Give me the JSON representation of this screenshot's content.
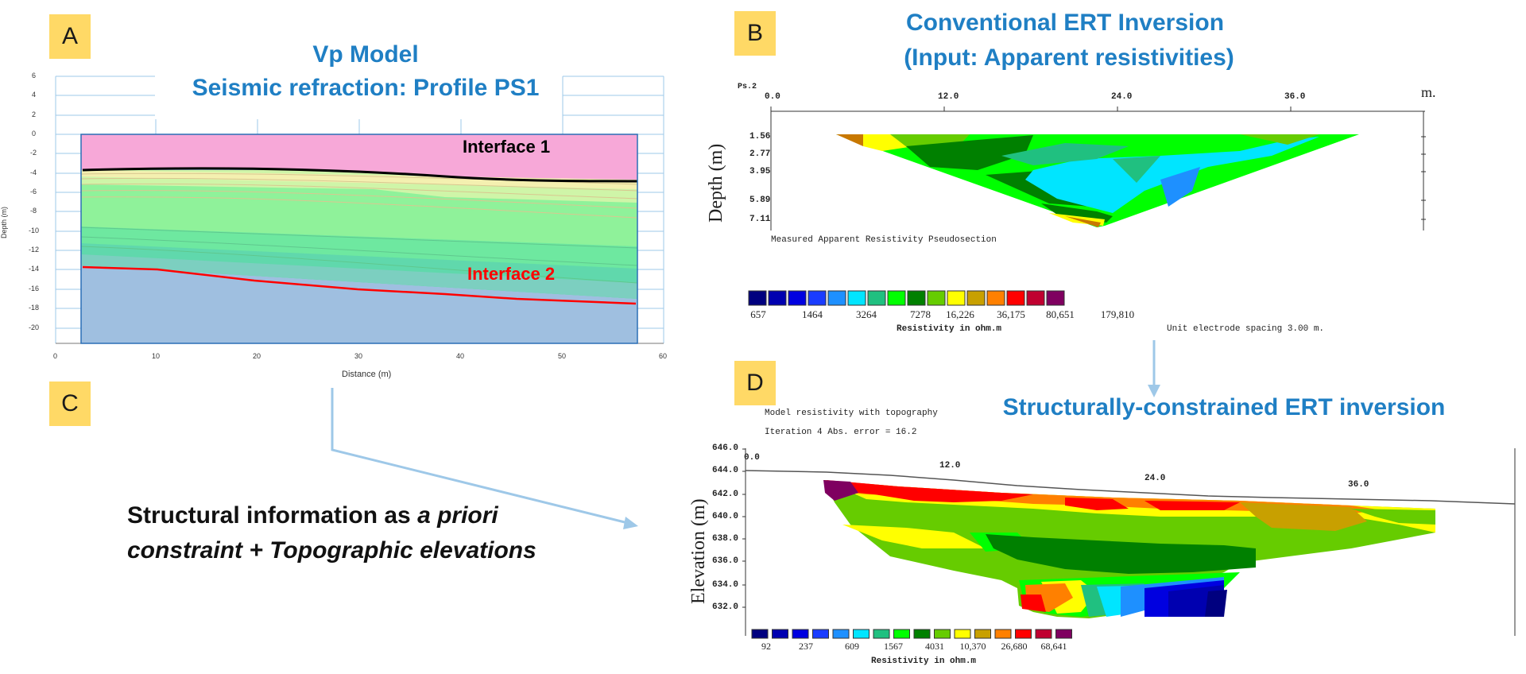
{
  "panel_letters": [
    "A",
    "B",
    "C",
    "D"
  ],
  "panel_a": {
    "title_line1": "Vp Model",
    "title_line2": "Seismic refraction: Profile PS1",
    "y_ticks": [
      "6",
      "4",
      "2",
      "0",
      "-2",
      "-4",
      "-6",
      "-8",
      "-10",
      "-12",
      "-14",
      "-16",
      "-18",
      "-20"
    ],
    "x_ticks": [
      "0",
      "10",
      "20",
      "30",
      "40",
      "50",
      "60"
    ],
    "ylabel": "Depth (m)",
    "xlabel": "Distance (m)",
    "interface1": "Interface 1",
    "interface2": "Interface 2",
    "colors": {
      "top_layer": "#f7a8d8",
      "bottom_layer": "#9fbfe0",
      "interface1": "#000000",
      "interface2": "#ff0000"
    }
  },
  "panel_b": {
    "title_line1": "Conventional ERT Inversion",
    "title_line2": "(Input: Apparent resistivities)",
    "profile_label": "Ps.2",
    "x_ticks": [
      "0.0",
      "12.0",
      "24.0",
      "36.0"
    ],
    "x_unit": "m.",
    "depth_ticks": [
      "1.56",
      "2.77",
      "3.95",
      "5.89",
      "7.11"
    ],
    "ylabel": "Depth (m)",
    "caption": "Measured Apparent Resistivity Pseudosection",
    "legend_values": [
      "657",
      "1464",
      "3264",
      "7278",
      "16,226",
      "36,175",
      "80,651",
      "179,810"
    ],
    "legend_title": "Resistivity in ohm.m",
    "electrode_spacing": "Unit electrode spacing 3.00 m."
  },
  "panel_c": {
    "line1_normal": "Structural information as ",
    "line1_italic": "a priori",
    "line2_italic": "constraint + Topographic elevations"
  },
  "panel_d": {
    "title": "Structurally-constrained ERT inversion",
    "caption1": "Model resistivity with topography",
    "caption2": "Iteration 4 Abs. error = 16.2",
    "elev_ticks": [
      "646.0",
      "644.0",
      "642.0",
      "640.0",
      "638.0",
      "636.0",
      "634.0",
      "632.0"
    ],
    "x_ticks": [
      "0.0",
      "12.0",
      "24.0",
      "36.0"
    ],
    "ylabel": "Elevation (m)",
    "legend_values": [
      "92",
      "237",
      "609",
      "1567",
      "4031",
      "10,370",
      "26,680",
      "68,641"
    ],
    "legend_title": "Resistivity in ohm.m"
  },
  "palette": [
    "#00007f",
    "#0000b0",
    "#0000e0",
    "#1a3cff",
    "#1e90ff",
    "#00e5ff",
    "#20c080",
    "#00ff00",
    "#008000",
    "#66cc00",
    "#ffff00",
    "#c8a000",
    "#ff8000",
    "#ff0000",
    "#c00030",
    "#7f0060"
  ]
}
